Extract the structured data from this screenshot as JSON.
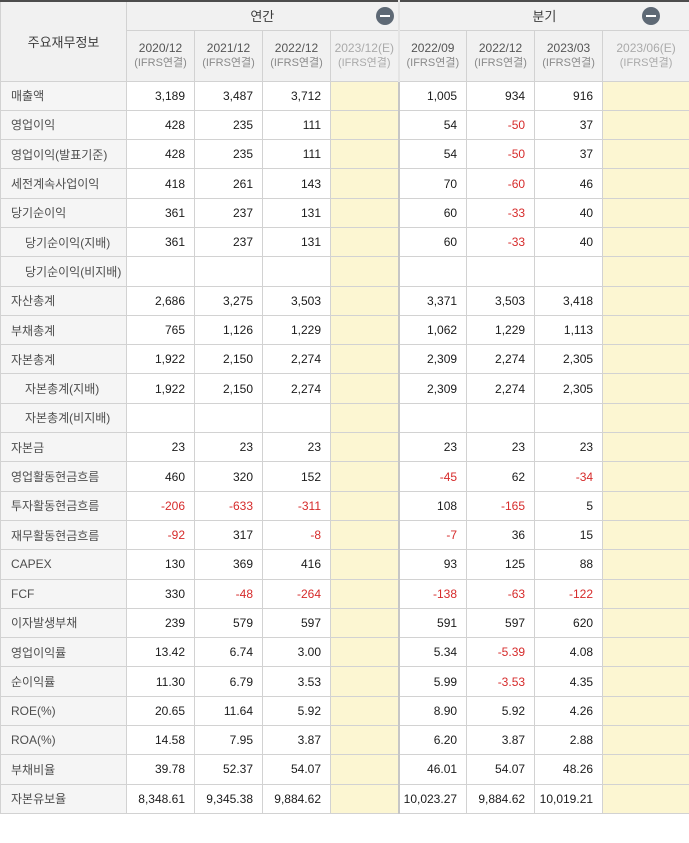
{
  "table": {
    "corner_label": "주요재무정보",
    "groups": [
      {
        "label": "연간",
        "icon": "minus-circle"
      },
      {
        "label": "분기",
        "icon": "minus-circle"
      }
    ],
    "columns": [
      {
        "period": "2020/12",
        "basis": "(IFRS연결)",
        "estimate": false
      },
      {
        "period": "2021/12",
        "basis": "(IFRS연결)",
        "estimate": false
      },
      {
        "period": "2022/12",
        "basis": "(IFRS연결)",
        "estimate": false
      },
      {
        "period": "2023/12(E)",
        "basis": "(IFRS연결)",
        "estimate": true
      },
      {
        "period": "2022/09",
        "basis": "(IFRS연결)",
        "estimate": false
      },
      {
        "period": "2022/12",
        "basis": "(IFRS연결)",
        "estimate": false
      },
      {
        "period": "2023/03",
        "basis": "(IFRS연결)",
        "estimate": false
      },
      {
        "period": "2023/06(E)",
        "basis": "(IFRS연결)",
        "estimate": true
      }
    ],
    "rows": [
      {
        "label": "매출액",
        "indent": false,
        "values": [
          "3,189",
          "3,487",
          "3,712",
          "",
          "1,005",
          "934",
          "916",
          ""
        ]
      },
      {
        "label": "영업이익",
        "indent": false,
        "values": [
          "428",
          "235",
          "111",
          "",
          "54",
          "-50",
          "37",
          ""
        ]
      },
      {
        "label": "영업이익(발표기준)",
        "indent": false,
        "values": [
          "428",
          "235",
          "111",
          "",
          "54",
          "-50",
          "37",
          ""
        ]
      },
      {
        "label": "세전계속사업이익",
        "indent": false,
        "values": [
          "418",
          "261",
          "143",
          "",
          "70",
          "-60",
          "46",
          ""
        ]
      },
      {
        "label": "당기순이익",
        "indent": false,
        "values": [
          "361",
          "237",
          "131",
          "",
          "60",
          "-33",
          "40",
          ""
        ]
      },
      {
        "label": "당기순이익(지배)",
        "indent": true,
        "values": [
          "361",
          "237",
          "131",
          "",
          "60",
          "-33",
          "40",
          ""
        ]
      },
      {
        "label": "당기순이익(비지배)",
        "indent": true,
        "values": [
          "",
          "",
          "",
          "",
          "",
          "",
          "",
          ""
        ]
      },
      {
        "label": "자산총계",
        "indent": false,
        "values": [
          "2,686",
          "3,275",
          "3,503",
          "",
          "3,371",
          "3,503",
          "3,418",
          ""
        ]
      },
      {
        "label": "부채총계",
        "indent": false,
        "values": [
          "765",
          "1,126",
          "1,229",
          "",
          "1,062",
          "1,229",
          "1,113",
          ""
        ]
      },
      {
        "label": "자본총계",
        "indent": false,
        "values": [
          "1,922",
          "2,150",
          "2,274",
          "",
          "2,309",
          "2,274",
          "2,305",
          ""
        ]
      },
      {
        "label": "자본총계(지배)",
        "indent": true,
        "values": [
          "1,922",
          "2,150",
          "2,274",
          "",
          "2,309",
          "2,274",
          "2,305",
          ""
        ]
      },
      {
        "label": "자본총계(비지배)",
        "indent": true,
        "values": [
          "",
          "",
          "",
          "",
          "",
          "",
          "",
          ""
        ]
      },
      {
        "label": "자본금",
        "indent": false,
        "values": [
          "23",
          "23",
          "23",
          "",
          "23",
          "23",
          "23",
          ""
        ]
      },
      {
        "label": "영업활동현금흐름",
        "indent": false,
        "values": [
          "460",
          "320",
          "152",
          "",
          "-45",
          "62",
          "-34",
          ""
        ]
      },
      {
        "label": "투자활동현금흐름",
        "indent": false,
        "values": [
          "-206",
          "-633",
          "-311",
          "",
          "108",
          "-165",
          "5",
          ""
        ]
      },
      {
        "label": "재무활동현금흐름",
        "indent": false,
        "values": [
          "-92",
          "317",
          "-8",
          "",
          "-7",
          "36",
          "15",
          ""
        ]
      },
      {
        "label": "CAPEX",
        "indent": false,
        "values": [
          "130",
          "369",
          "416",
          "",
          "93",
          "125",
          "88",
          ""
        ]
      },
      {
        "label": "FCF",
        "indent": false,
        "values": [
          "330",
          "-48",
          "-264",
          "",
          "-138",
          "-63",
          "-122",
          ""
        ]
      },
      {
        "label": "이자발생부채",
        "indent": false,
        "values": [
          "239",
          "579",
          "597",
          "",
          "591",
          "597",
          "620",
          ""
        ]
      },
      {
        "label": "영업이익률",
        "indent": false,
        "values": [
          "13.42",
          "6.74",
          "3.00",
          "",
          "5.34",
          "-5.39",
          "4.08",
          ""
        ]
      },
      {
        "label": "순이익률",
        "indent": false,
        "values": [
          "11.30",
          "6.79",
          "3.53",
          "",
          "5.99",
          "-3.53",
          "4.35",
          ""
        ]
      },
      {
        "label": "ROE(%)",
        "indent": false,
        "values": [
          "20.65",
          "11.64",
          "5.92",
          "",
          "8.90",
          "5.92",
          "4.26",
          ""
        ]
      },
      {
        "label": "ROA(%)",
        "indent": false,
        "values": [
          "14.58",
          "7.95",
          "3.87",
          "",
          "6.20",
          "3.87",
          "2.88",
          ""
        ]
      },
      {
        "label": "부채비율",
        "indent": false,
        "values": [
          "39.78",
          "52.37",
          "54.07",
          "",
          "46.01",
          "54.07",
          "48.26",
          ""
        ]
      },
      {
        "label": "자본유보율",
        "indent": false,
        "values": [
          "8,348.61",
          "9,345.38",
          "9,884.62",
          "",
          "10,023.27",
          "9,884.62",
          "10,019.21",
          ""
        ]
      }
    ]
  },
  "colors": {
    "negative_value": "#d62b2b",
    "estimate_column_bg": "#fcf6d2",
    "header_bg": "#f1f1f1",
    "label_column_bg": "#f5f5f5",
    "collapse_icon_bg": "#5e6975",
    "top_border": "#4d4d4d"
  }
}
